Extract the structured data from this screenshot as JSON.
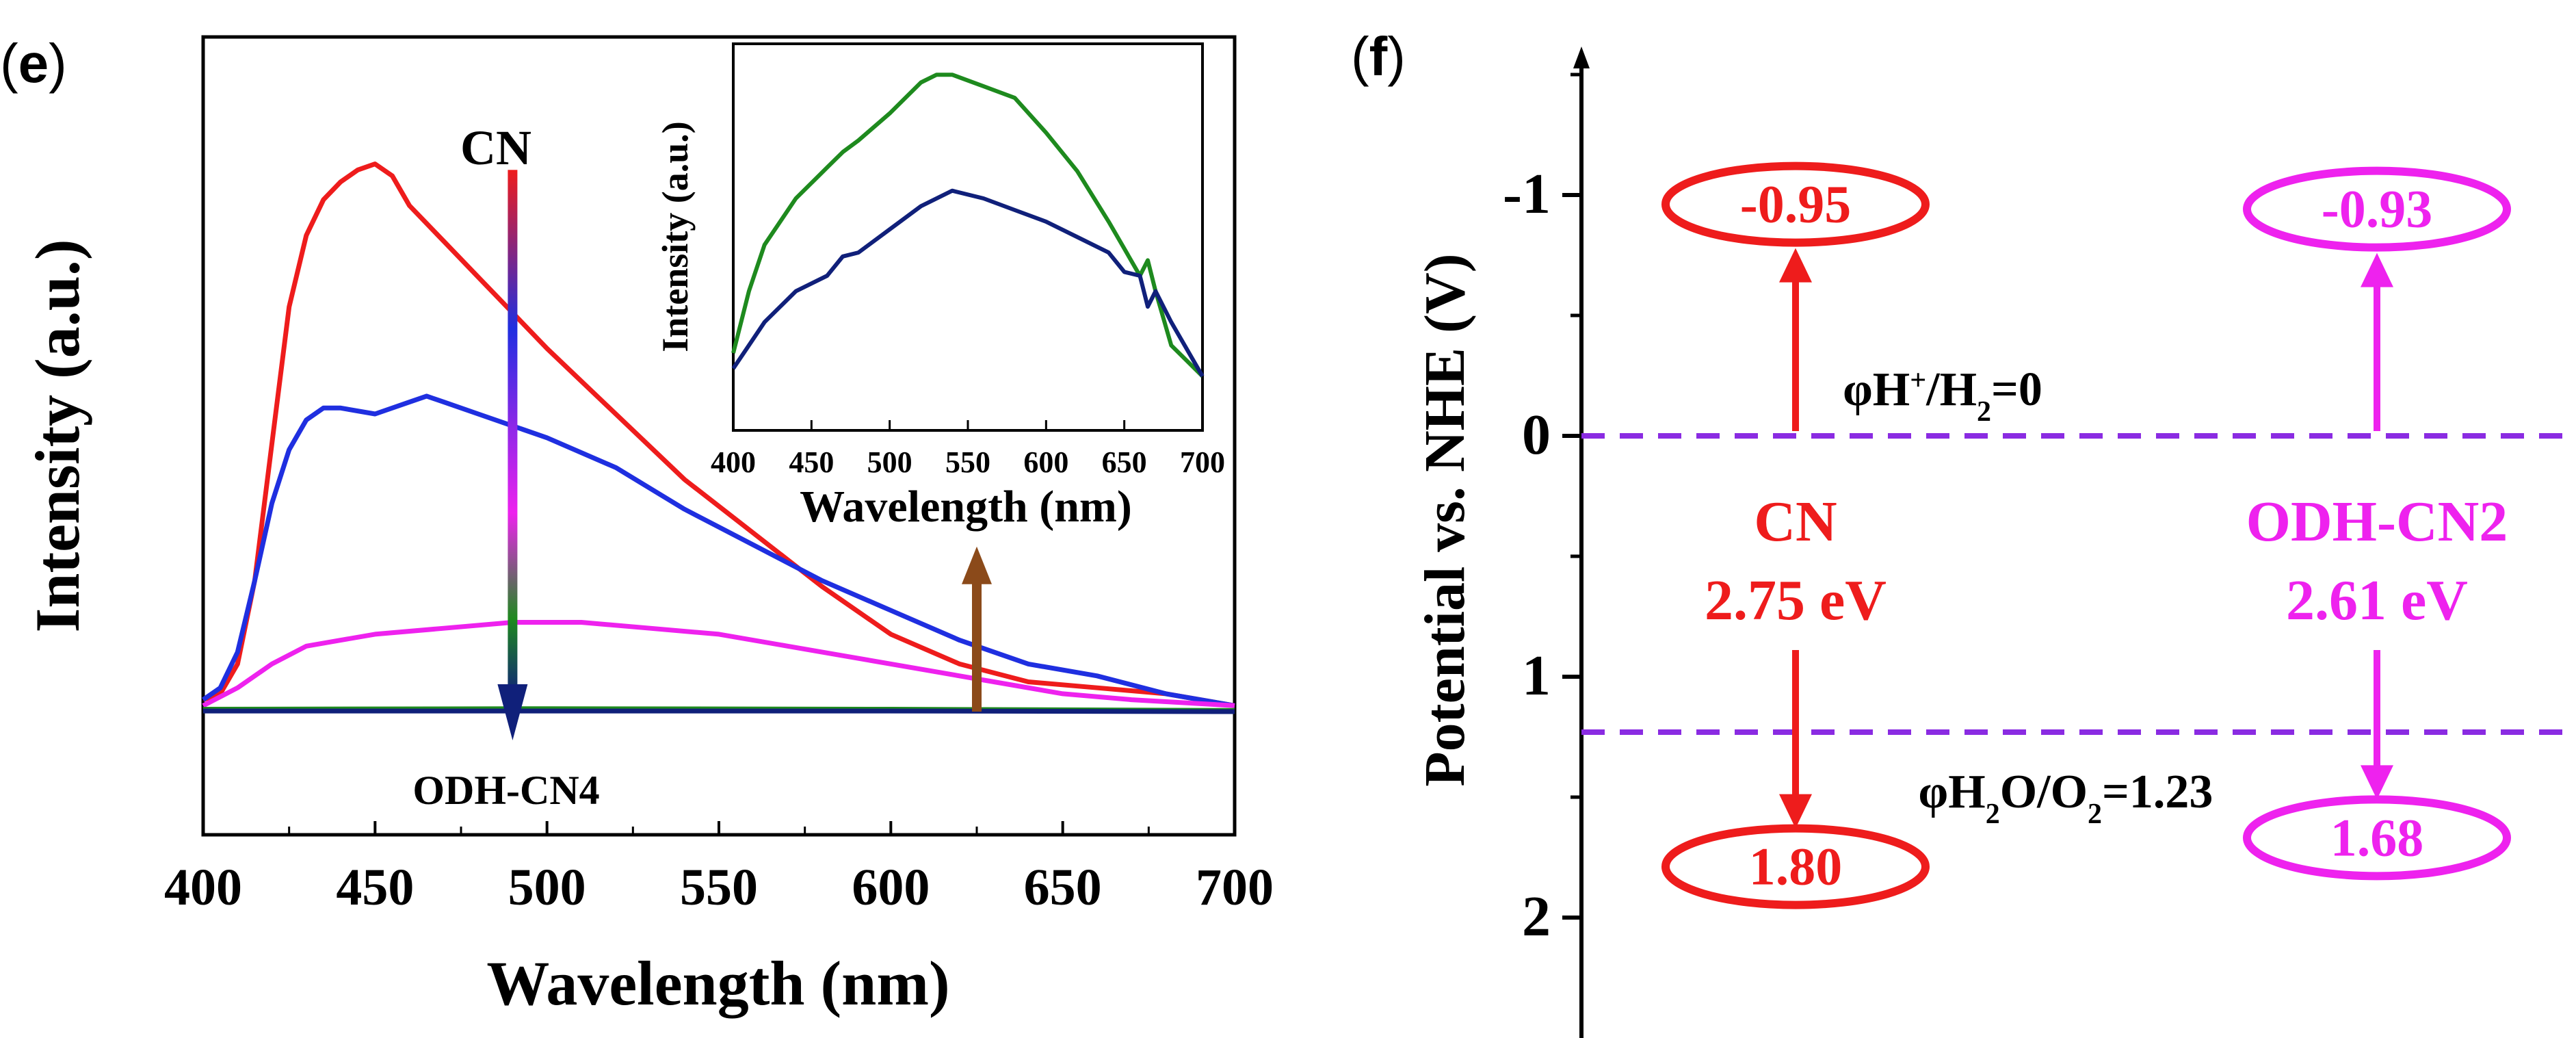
{
  "colors": {
    "cn": "#ee1c1c",
    "blue": "#1f2fe0",
    "magenta": "#ee22ee",
    "green": "#1e8a1e",
    "navy": "#10207a",
    "brown": "#8b4a1a",
    "level": "#8a2be2",
    "axis": "#000000"
  },
  "panel_e": {
    "label_letter": "e",
    "ann_top": "CN",
    "ann_bottom": "ODH-CN4"
  },
  "panel_f": {
    "label_letter": "f"
  },
  "chart_data": [
    {
      "id": "main",
      "type": "line",
      "title": "",
      "xlabel": "Wavelength (nm)",
      "ylabel": "Intensity (a.u.)",
      "xlim": [
        400,
        700
      ],
      "ylim": [
        0,
        100
      ],
      "xticks": [
        400,
        450,
        500,
        550,
        600,
        650,
        700
      ],
      "yticks_visible": false,
      "series": [
        {
          "name": "CN",
          "color": "#ee1c1c",
          "x": [
            400,
            405,
            410,
            415,
            420,
            425,
            430,
            435,
            440,
            445,
            450,
            455,
            460,
            470,
            480,
            490,
            500,
            520,
            540,
            560,
            580,
            600,
            620,
            640,
            660,
            680,
            700
          ],
          "y": [
            2,
            3,
            8,
            22,
            45,
            68,
            80,
            86,
            89,
            91,
            92,
            90,
            85,
            79,
            73,
            67,
            61,
            50,
            39,
            30,
            21,
            13,
            8,
            5,
            4,
            3,
            1
          ]
        },
        {
          "name": "blue",
          "color": "#1f2fe0",
          "x": [
            400,
            405,
            410,
            415,
            420,
            425,
            430,
            435,
            440,
            450,
            460,
            465,
            470,
            480,
            490,
            500,
            520,
            540,
            560,
            580,
            600,
            620,
            640,
            660,
            680,
            700
          ],
          "y": [
            2,
            4,
            10,
            22,
            35,
            44,
            49,
            51,
            51,
            50,
            52,
            53,
            52,
            50,
            48,
            46,
            41,
            34,
            28,
            22,
            17,
            12,
            8,
            6,
            3,
            1
          ]
        },
        {
          "name": "magenta",
          "color": "#ee22ee",
          "x": [
            400,
            410,
            420,
            430,
            440,
            450,
            470,
            490,
            510,
            530,
            550,
            570,
            590,
            610,
            630,
            650,
            670,
            700
          ],
          "y": [
            1,
            4,
            8,
            11,
            12,
            13,
            14,
            15,
            15,
            14,
            13,
            11,
            9,
            7,
            5,
            3,
            2,
            1
          ]
        },
        {
          "name": "green",
          "color": "#1e8a1e",
          "x": [
            400,
            500,
            600,
            700
          ],
          "y": [
            0.4,
            0.5,
            0.4,
            0.2
          ]
        },
        {
          "name": "ODH-CN4",
          "color": "#10207a",
          "x": [
            400,
            500,
            600,
            700
          ],
          "y": [
            0.1,
            0.1,
            0.1,
            0.0
          ]
        }
      ],
      "annotations": [
        {
          "text": "CN",
          "arrow": "down",
          "x": 490,
          "from": 91,
          "to": 0
        },
        {
          "text": "ODH-CN4",
          "arrow": "up",
          "x": 625,
          "from": 0,
          "to": 26
        }
      ]
    },
    {
      "id": "inset",
      "type": "line",
      "xlabel": "Wavelength (nm)",
      "ylabel": "Intensity (a.u.)",
      "xlim": [
        400,
        700
      ],
      "ylim": [
        0,
        100
      ],
      "xticks": [
        400,
        450,
        500,
        550,
        600,
        650,
        700
      ],
      "series": [
        {
          "name": "green",
          "color": "#1e8a1e",
          "x": [
            400,
            410,
            420,
            440,
            460,
            470,
            480,
            500,
            520,
            530,
            540,
            560,
            580,
            600,
            620,
            640,
            650,
            660,
            665,
            670,
            680,
            700
          ],
          "y": [
            20,
            36,
            48,
            60,
            68,
            72,
            75,
            82,
            90,
            92,
            92,
            89,
            86,
            77,
            67,
            54,
            47,
            40,
            44,
            36,
            22,
            14
          ]
        },
        {
          "name": "navy",
          "color": "#10207a",
          "x": [
            400,
            410,
            420,
            440,
            460,
            470,
            480,
            500,
            520,
            540,
            560,
            580,
            600,
            620,
            640,
            650,
            660,
            665,
            670,
            680,
            700
          ],
          "y": [
            16,
            22,
            28,
            36,
            40,
            45,
            46,
            52,
            58,
            62,
            60,
            57,
            54,
            50,
            46,
            41,
            40,
            32,
            36,
            28,
            14
          ]
        }
      ]
    },
    {
      "id": "band",
      "type": "diagram",
      "ylabel": "Potential vs. NHE (V)",
      "ylim": [
        -1.6,
        2.4
      ],
      "yticks": [
        -1,
        0,
        1,
        2
      ],
      "levels": [
        {
          "value": 0,
          "text": "φH+/H2=0"
        },
        {
          "value": 1.23,
          "text": "φH2O/O2=1.23"
        }
      ],
      "samples": [
        {
          "name": "CN",
          "cb": -0.95,
          "vb": 1.8,
          "cb_text": "-0.95",
          "vb_text": "1.80",
          "gap_text": "2.75 eV",
          "color": "#ee1c1c"
        },
        {
          "name": "ODH-CN2",
          "cb": -0.93,
          "vb": 1.68,
          "cb_text": "-0.93",
          "vb_text": "1.68",
          "gap_text": "2.61 eV",
          "color": "#ee22ee"
        }
      ]
    }
  ]
}
